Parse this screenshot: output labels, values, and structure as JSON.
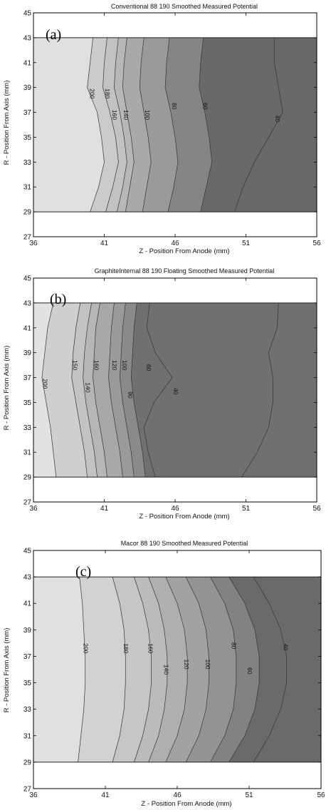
{
  "chart_data": [
    {
      "type": "contour",
      "panel_label": "(a)",
      "title": "Conventional 88 190 Smoothed Measured Potential",
      "xlabel": "Z - Position From Anode (mm)",
      "ylabel": "R - Position From Axis (mm)",
      "xlim": [
        36,
        56
      ],
      "ylim": [
        27,
        45
      ],
      "data_ylim": [
        29,
        43
      ],
      "xticks": [
        "36",
        "41",
        "46",
        "51",
        "56"
      ],
      "yticks": [
        "27",
        "29",
        "31",
        "33",
        "35",
        "37",
        "39",
        "41",
        "43",
        "45"
      ],
      "fills": [
        "#e0e0e0",
        "#cbcbcb",
        "#c2c2c2",
        "#b7b7b7",
        "#a9a9a9",
        "#9a9a9a",
        "#858585",
        "#696969"
      ],
      "contours": [
        {
          "level": 200,
          "z": [
            40.2,
            40.0,
            39.8,
            40.5,
            40.8,
            41.0,
            40.6,
            40.0
          ],
          "label": {
            "text": "200",
            "z": 40.1,
            "r": 38.5
          }
        },
        {
          "level": 180,
          "z": [
            41.2,
            41.0,
            40.9,
            41.4,
            41.8,
            42.0,
            41.6,
            41.1
          ],
          "label": {
            "text": "180",
            "z": 41.2,
            "r": 38.5
          }
        },
        {
          "level": 160,
          "z": [
            42.0,
            41.8,
            41.7,
            42.1,
            42.4,
            42.6,
            42.3,
            41.9
          ],
          "label": {
            "text": "160",
            "z": 41.7,
            "r": 36.8
          }
        },
        {
          "level": 140,
          "z": [
            42.6,
            42.4,
            42.3,
            42.6,
            42.9,
            43.1,
            42.8,
            42.5
          ],
          "label": {
            "text": "140",
            "z": 42.5,
            "r": 36.8
          }
        },
        {
          "level": 100,
          "z": [
            43.8,
            43.6,
            43.5,
            43.8,
            44.1,
            44.3,
            44.0,
            43.7
          ],
          "label": {
            "text": "100",
            "z": 44.0,
            "r": 36.8
          }
        },
        {
          "level": 80,
          "z": [
            45.6,
            45.4,
            45.3,
            45.7,
            46.0,
            46.2,
            45.9,
            45.5
          ],
          "label": {
            "text": "80",
            "z": 45.9,
            "r": 37.5
          }
        },
        {
          "level": 60,
          "z": [
            48.0,
            47.8,
            47.7,
            48.1,
            48.4,
            48.6,
            48.2,
            47.8
          ],
          "label": {
            "text": "60",
            "z": 48.1,
            "r": 37.5
          }
        },
        {
          "level": 40,
          "z": [
            53.0,
            53.0,
            53.3,
            53.6,
            52.6,
            51.6,
            50.8,
            50.2
          ],
          "label": {
            "text": "40",
            "z": 53.2,
            "r": 36.5
          }
        }
      ]
    },
    {
      "type": "contour",
      "panel_label": "(b)",
      "title": "GraphiteInternal 88 190 Floating Smoothed Measured Potential",
      "xlabel": "Z - Position From Anode (mm)",
      "ylabel": "R - Position From Axis (mm)",
      "xlim": [
        36,
        56
      ],
      "ylim": [
        27,
        45
      ],
      "data_ylim": [
        29,
        43
      ],
      "xticks": [
        "36",
        "41",
        "46",
        "51",
        "56"
      ],
      "yticks": [
        "27",
        "29",
        "31",
        "33",
        "35",
        "37",
        "39",
        "41",
        "43",
        "45"
      ],
      "fills": [
        "#e2e2e2",
        "#cfcfcf",
        "#c3c3c3",
        "#b6b6b6",
        "#a8a8a8",
        "#9a9a9a",
        "#8a8a8a",
        "#707070"
      ],
      "contours": [
        {
          "level": 200,
          "z": [
            37.4,
            37.0,
            36.8,
            36.6,
            36.9,
            37.2,
            37.4,
            37.6
          ],
          "label": {
            "text": "200",
            "z": 36.8,
            "r": 36.5
          }
        },
        {
          "level": 150,
          "z": [
            39.3,
            39.0,
            38.8,
            38.7,
            39.0,
            39.3,
            39.6,
            39.8
          ],
          "label": {
            "text": "150",
            "z": 38.9,
            "r": 38.0
          }
        },
        {
          "level": 140,
          "z": [
            40.1,
            39.8,
            39.6,
            39.5,
            39.7,
            40.0,
            40.3,
            40.5
          ],
          "label": {
            "text": "140",
            "z": 39.8,
            "r": 36.2
          }
        },
        {
          "level": 160,
          "z": [
            40.7,
            40.4,
            40.3,
            40.2,
            40.4,
            40.7,
            41.0,
            41.2
          ],
          "label": {
            "text": "160",
            "z": 40.4,
            "r": 38.0
          }
        },
        {
          "level": 120,
          "z": [
            41.7,
            41.5,
            41.4,
            41.3,
            41.5,
            41.8,
            42.1,
            42.3
          ],
          "label": {
            "text": "120",
            "z": 41.7,
            "r": 38.0
          }
        },
        {
          "level": 100,
          "z": [
            42.5,
            42.3,
            42.2,
            42.1,
            42.3,
            42.6,
            42.9,
            43.1
          ],
          "label": {
            "text": "100",
            "z": 42.4,
            "r": 38.0
          }
        },
        {
          "level": 90,
          "z": [
            43.3,
            43.1,
            43.0,
            42.9,
            43.1,
            43.4,
            43.7,
            43.9
          ],
          "label": {
            "text": "90",
            "z": 42.8,
            "r": 35.6
          }
        },
        {
          "level": 60,
          "z": [
            44.2,
            44.0,
            44.6,
            45.8,
            44.5,
            43.8,
            44.1,
            44.6
          ],
          "label": {
            "text": "60",
            "z": 44.1,
            "r": 37.8
          }
        },
        {
          "level": 40,
          "z": [
            53.3,
            53.2,
            52.6,
            52.9,
            52.9,
            52.6,
            51.8,
            50.7
          ],
          "label": {
            "text": "40",
            "z": 46.0,
            "r": 35.9
          }
        }
      ]
    },
    {
      "type": "contour",
      "panel_label": "(c)",
      "title": "Macor 88 190 Smoothed Measured Potential",
      "xlabel": "Z - Position From Anode (mm)",
      "ylabel": "R - Position From Axis (mm)",
      "xlim": [
        36,
        56
      ],
      "ylim": [
        27,
        45
      ],
      "data_ylim": [
        29,
        43
      ],
      "xticks": [
        "36",
        "41",
        "46",
        "51",
        "56"
      ],
      "yticks": [
        "27",
        "29",
        "31",
        "33",
        "35",
        "37",
        "39",
        "41",
        "43",
        "45"
      ],
      "fills": [
        "#e0e0e0",
        "#d2d2d2",
        "#c6c6c6",
        "#bbbbbb",
        "#afafaf",
        "#a2a2a2",
        "#939393",
        "#828282",
        "#6a6a6a"
      ],
      "contours": [
        {
          "level": 200,
          "z": [
            39.2,
            39.4,
            39.5,
            39.6,
            39.6,
            39.5,
            39.3,
            39.1
          ],
          "label": {
            "text": "200",
            "z": 39.6,
            "r": 37.6
          }
        },
        {
          "level": 180,
          "z": [
            41.5,
            42.0,
            42.3,
            42.4,
            42.4,
            42.3,
            42.0,
            41.5
          ],
          "label": {
            "text": "180",
            "z": 42.4,
            "r": 37.6
          }
        },
        {
          "level": 160,
          "z": [
            43.0,
            43.6,
            44.0,
            44.2,
            44.2,
            44.0,
            43.6,
            43.0
          ],
          "label": {
            "text": "160",
            "z": 44.1,
            "r": 37.6
          }
        },
        {
          "level": 140,
          "z": [
            44.0,
            44.7,
            45.1,
            45.3,
            45.3,
            45.1,
            44.7,
            44.0
          ],
          "label": {
            "text": "140",
            "z": 45.2,
            "r": 36.0
          }
        },
        {
          "level": 120,
          "z": [
            45.2,
            46.0,
            46.5,
            46.7,
            46.7,
            46.5,
            46.0,
            45.2
          ],
          "label": {
            "text": "120",
            "z": 46.6,
            "r": 36.4
          }
        },
        {
          "level": 100,
          "z": [
            46.6,
            47.5,
            48.0,
            48.2,
            48.2,
            48.0,
            47.5,
            46.6
          ],
          "label": {
            "text": "100",
            "z": 48.1,
            "r": 36.4
          }
        },
        {
          "level": 80,
          "z": [
            48.3,
            49.3,
            49.9,
            50.1,
            50.1,
            49.9,
            49.3,
            48.3
          ],
          "label": {
            "text": "80",
            "z": 49.9,
            "r": 37.8
          }
        },
        {
          "level": 60,
          "z": [
            49.6,
            50.7,
            51.4,
            51.7,
            51.7,
            51.4,
            50.7,
            49.6
          ],
          "label": {
            "text": "60",
            "z": 51.0,
            "r": 35.9
          }
        },
        {
          "level": 40,
          "z": [
            51.3,
            52.4,
            53.2,
            53.6,
            53.6,
            53.2,
            52.4,
            51.3
          ],
          "label": {
            "text": "40",
            "z": 53.5,
            "r": 37.7
          }
        }
      ]
    }
  ]
}
